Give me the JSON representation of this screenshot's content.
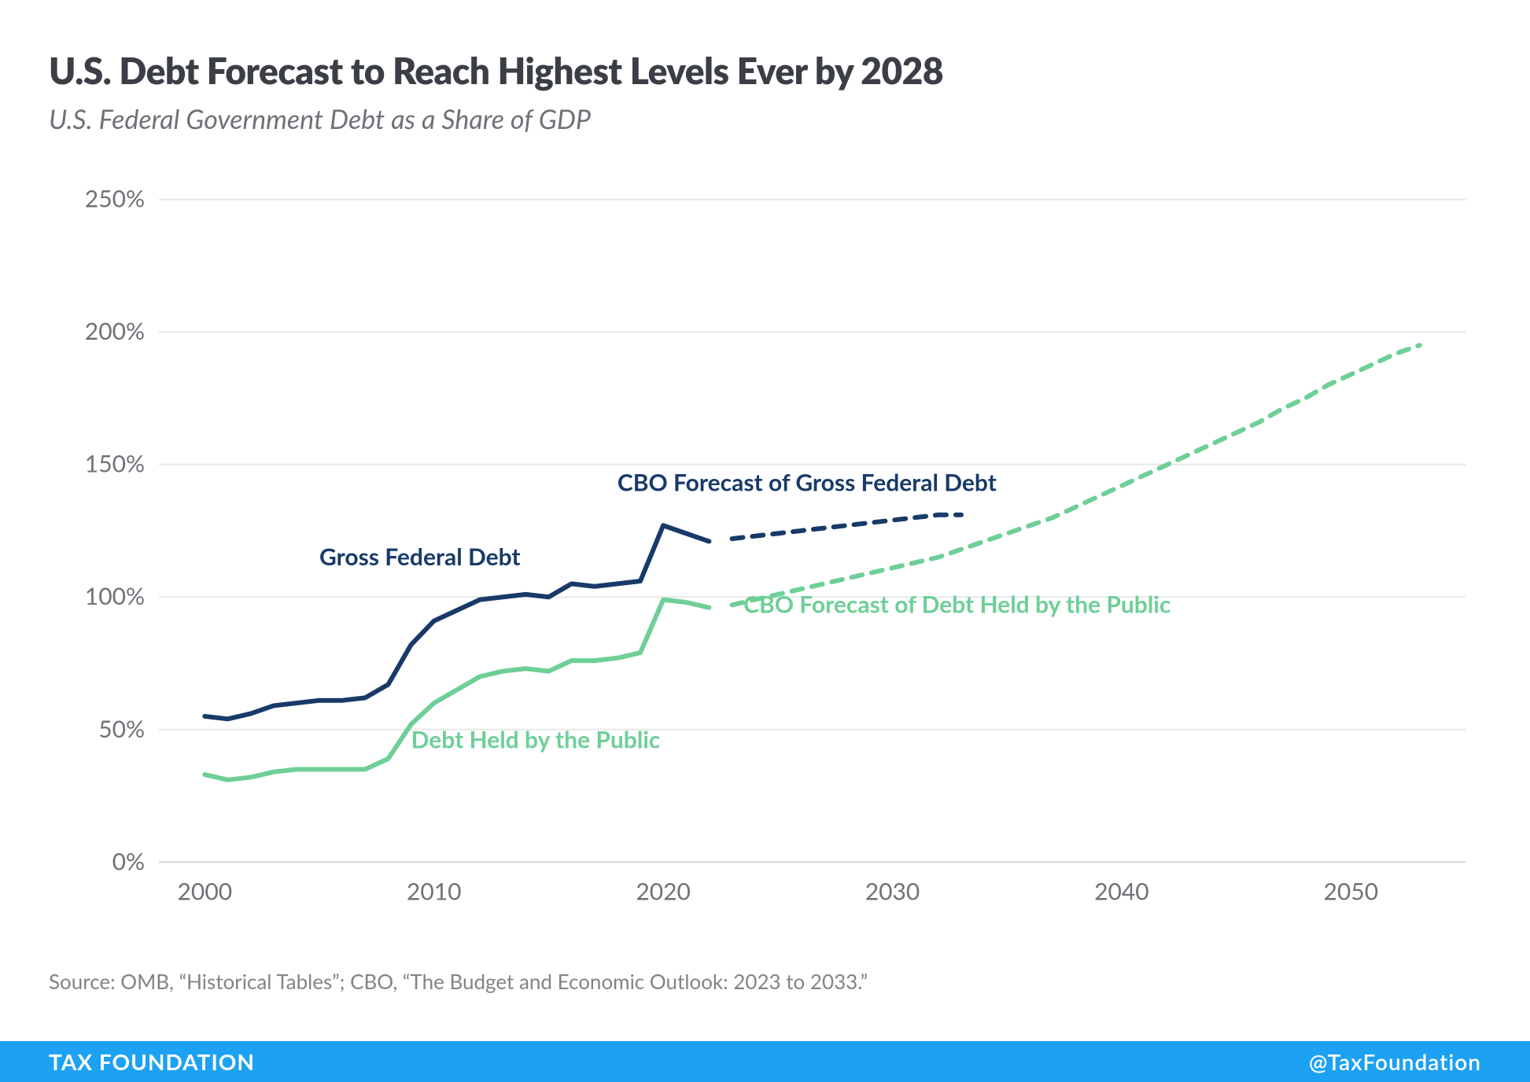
{
  "title": "U.S. Debt Forecast to Reach Highest Levels Ever by 2028",
  "subtitle": "U.S. Federal Government Debt as a Share of GDP",
  "source": "Source: OMB, “Historical Tables”; CBO, “The Budget and Economic Outlook: 2023 to 2033.”",
  "footer": {
    "left": "TAX FOUNDATION",
    "right": "@TaxFoundation",
    "bg": "#1da1f2",
    "fg": "#ffffff"
  },
  "chart": {
    "type": "line",
    "background_color": "#ffffff",
    "grid_color": "#e8e8e8",
    "axis_color": "#d7d7d7",
    "tick_label_color": "#6e7278",
    "xlim": [
      1998,
      2055
    ],
    "ylim": [
      -10,
      260
    ],
    "xticks": [
      2000,
      2010,
      2020,
      2030,
      2040,
      2050
    ],
    "yticks": [
      0,
      50,
      100,
      150,
      200,
      250
    ],
    "ytick_suffix": "%",
    "title_fontsize": 46,
    "subtitle_fontsize": 34,
    "tick_fontsize": 30,
    "label_fontsize": 30,
    "line_width": 6,
    "dash_pattern": "14 12",
    "series": [
      {
        "id": "gross_federal_debt",
        "label": "Gross Federal Debt",
        "color": "#183a68",
        "style": "solid",
        "label_xy": [
          2005,
          112
        ],
        "label_anchor": "start",
        "data": [
          [
            2000,
            55
          ],
          [
            2001,
            54
          ],
          [
            2002,
            56
          ],
          [
            2003,
            59
          ],
          [
            2004,
            60
          ],
          [
            2005,
            61
          ],
          [
            2006,
            61
          ],
          [
            2007,
            62
          ],
          [
            2008,
            67
          ],
          [
            2009,
            82
          ],
          [
            2010,
            91
          ],
          [
            2011,
            95
          ],
          [
            2012,
            99
          ],
          [
            2013,
            100
          ],
          [
            2014,
            101
          ],
          [
            2015,
            100
          ],
          [
            2016,
            105
          ],
          [
            2017,
            104
          ],
          [
            2018,
            105
          ],
          [
            2019,
            106
          ],
          [
            2020,
            127
          ],
          [
            2021,
            124
          ],
          [
            2022,
            121
          ]
        ]
      },
      {
        "id": "cbo_gross_forecast",
        "label": "CBO Forecast of Gross Federal Debt",
        "color": "#183a68",
        "style": "dashed",
        "label_xy": [
          2018,
          140
        ],
        "label_anchor": "start",
        "data": [
          [
            2023,
            122
          ],
          [
            2024,
            123
          ],
          [
            2025,
            124
          ],
          [
            2026,
            125
          ],
          [
            2027,
            126
          ],
          [
            2028,
            127
          ],
          [
            2029,
            128
          ],
          [
            2030,
            129
          ],
          [
            2031,
            130
          ],
          [
            2032,
            131
          ],
          [
            2033,
            131
          ]
        ]
      },
      {
        "id": "debt_public",
        "label": "Debt Held by the Public",
        "color": "#6ecf97",
        "style": "solid",
        "label_xy": [
          2009,
          43
        ],
        "label_anchor": "start",
        "data": [
          [
            2000,
            33
          ],
          [
            2001,
            31
          ],
          [
            2002,
            32
          ],
          [
            2003,
            34
          ],
          [
            2004,
            35
          ],
          [
            2005,
            35
          ],
          [
            2006,
            35
          ],
          [
            2007,
            35
          ],
          [
            2008,
            39
          ],
          [
            2009,
            52
          ],
          [
            2010,
            60
          ],
          [
            2011,
            65
          ],
          [
            2012,
            70
          ],
          [
            2013,
            72
          ],
          [
            2014,
            73
          ],
          [
            2015,
            72
          ],
          [
            2016,
            76
          ],
          [
            2017,
            76
          ],
          [
            2018,
            77
          ],
          [
            2019,
            79
          ],
          [
            2020,
            99
          ],
          [
            2021,
            98
          ],
          [
            2022,
            96
          ]
        ]
      },
      {
        "id": "cbo_public_forecast",
        "label": "CBO Forecast of Debt Held by the Public",
        "color": "#6ecf97",
        "style": "dashed",
        "label_xy": [
          2023.5,
          94
        ],
        "label_anchor": "start",
        "data": [
          [
            2023,
            97
          ],
          [
            2024,
            99
          ],
          [
            2025,
            101
          ],
          [
            2026,
            103
          ],
          [
            2027,
            105
          ],
          [
            2028,
            107
          ],
          [
            2029,
            109
          ],
          [
            2030,
            111
          ],
          [
            2031,
            113
          ],
          [
            2032,
            115
          ],
          [
            2033,
            118
          ],
          [
            2034,
            121
          ],
          [
            2035,
            124
          ],
          [
            2036,
            127
          ],
          [
            2037,
            130
          ],
          [
            2038,
            134
          ],
          [
            2039,
            138
          ],
          [
            2040,
            142
          ],
          [
            2041,
            146
          ],
          [
            2042,
            150
          ],
          [
            2043,
            154
          ],
          [
            2044,
            158
          ],
          [
            2045,
            162
          ],
          [
            2046,
            166
          ],
          [
            2047,
            171
          ],
          [
            2048,
            175
          ],
          [
            2049,
            180
          ],
          [
            2050,
            184
          ],
          [
            2051,
            188
          ],
          [
            2052,
            192
          ],
          [
            2053,
            195
          ]
        ]
      }
    ]
  }
}
